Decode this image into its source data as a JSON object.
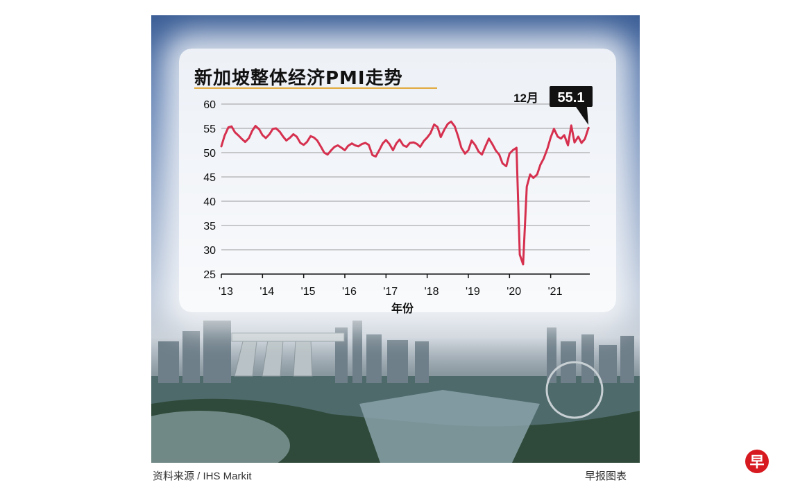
{
  "graphic": {
    "title": "新加坡整体经济PMI走势",
    "source": "资料来源 / IHS Markit",
    "credit": "早报图表",
    "logo_char": "早",
    "colors": {
      "line": "#d6304f",
      "title_rule": "#e0a93a",
      "callout_bg": "#111111"
    }
  },
  "chart_data": {
    "type": "line",
    "title": "新加坡整体经济PMI走势",
    "xlabel": "年份",
    "ylabel": "",
    "ylim": [
      25,
      60
    ],
    "yticks": [
      25,
      30,
      35,
      40,
      45,
      50,
      55,
      60
    ],
    "xticks": [
      "'13",
      "'14",
      "'15",
      "'16",
      "'17",
      "'18",
      "'19",
      "'20",
      "'21"
    ],
    "xlim": [
      2013,
      2021.95
    ],
    "grid": true,
    "legend": "none",
    "annotation": {
      "label": "12月",
      "value": "55.1"
    },
    "series": [
      {
        "x": [
          2013.0,
          2013.08,
          2013.17,
          2013.25,
          2013.33,
          2013.42,
          2013.5,
          2013.58,
          2013.67,
          2013.75,
          2013.83,
          2013.92,
          2014.0,
          2014.08,
          2014.17,
          2014.25,
          2014.33,
          2014.42,
          2014.5,
          2014.58,
          2014.67,
          2014.75,
          2014.83,
          2014.92,
          2015.0,
          2015.08,
          2015.17,
          2015.25,
          2015.33,
          2015.42,
          2015.5,
          2015.58,
          2015.67,
          2015.75,
          2015.83,
          2015.92,
          2016.0,
          2016.08,
          2016.17,
          2016.25,
          2016.33,
          2016.42,
          2016.5,
          2016.58,
          2016.67,
          2016.75,
          2016.83,
          2016.92,
          2017.0,
          2017.08,
          2017.17,
          2017.25,
          2017.33,
          2017.42,
          2017.5,
          2017.58,
          2017.67,
          2017.75,
          2017.83,
          2017.92,
          2018.0,
          2018.08,
          2018.17,
          2018.25,
          2018.33,
          2018.42,
          2018.5,
          2018.58,
          2018.67,
          2018.75,
          2018.83,
          2018.92,
          2019.0,
          2019.08,
          2019.17,
          2019.25,
          2019.33,
          2019.42,
          2019.5,
          2019.58,
          2019.67,
          2019.75,
          2019.83,
          2019.92,
          2020.0,
          2020.08,
          2020.17,
          2020.25,
          2020.33,
          2020.42,
          2020.5,
          2020.58,
          2020.67,
          2020.75,
          2020.83,
          2020.92,
          2021.0,
          2021.08,
          2021.17,
          2021.25,
          2021.33,
          2021.42,
          2021.5,
          2021.58,
          2021.67,
          2021.75,
          2021.83,
          2021.92
        ],
        "y": [
          51.3,
          53.5,
          55.2,
          55.4,
          54.2,
          53.5,
          52.8,
          52.2,
          53.0,
          54.5,
          55.5,
          54.8,
          53.6,
          53.0,
          53.8,
          54.9,
          55.0,
          54.3,
          53.3,
          52.5,
          53.1,
          53.8,
          53.3,
          52.0,
          51.6,
          52.2,
          53.4,
          53.1,
          52.5,
          51.2,
          50.0,
          49.6,
          50.5,
          51.2,
          51.5,
          51.0,
          50.5,
          51.4,
          51.9,
          51.5,
          51.3,
          51.8,
          52.0,
          51.6,
          49.5,
          49.2,
          50.4,
          51.9,
          52.6,
          51.8,
          50.5,
          51.9,
          52.7,
          51.5,
          51.2,
          52.0,
          52.1,
          51.8,
          51.2,
          52.4,
          53.1,
          54.0,
          55.8,
          55.3,
          53.2,
          54.8,
          55.9,
          56.4,
          55.4,
          53.4,
          51.0,
          49.8,
          50.5,
          52.5,
          51.5,
          50.2,
          49.6,
          51.4,
          52.9,
          51.8,
          50.4,
          49.6,
          47.8,
          47.2,
          49.8,
          50.5,
          51.0,
          29.0,
          27.0,
          43.0,
          45.5,
          44.8,
          45.5,
          47.5,
          48.8,
          50.8,
          53.1,
          54.9,
          53.3,
          52.9,
          53.6,
          51.5,
          55.6,
          52.1,
          53.3,
          52.0,
          52.8,
          55.1
        ]
      }
    ]
  }
}
